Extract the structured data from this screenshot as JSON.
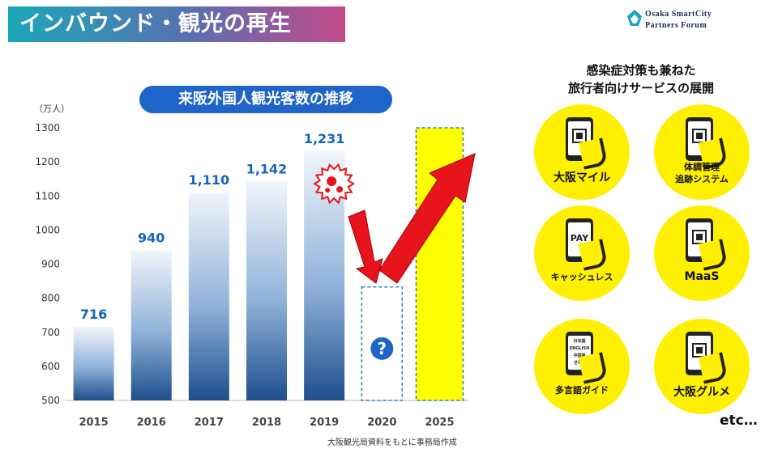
{
  "header": {
    "title": "インバウンド・観光の再生",
    "logo_line1": "Osaka SmartCity",
    "logo_line2": "Partners Forum"
  },
  "chart_data": {
    "type": "bar",
    "title": "来阪外国人観光客数の推移",
    "ylabel": "（万人）",
    "ylim": [
      500,
      1300
    ],
    "ytick_step": 100,
    "categories": [
      "2015",
      "2016",
      "2017",
      "2018",
      "2019",
      "2020",
      "2025"
    ],
    "values": [
      716,
      940,
      1110,
      1142,
      1231,
      null,
      null
    ],
    "labels": [
      "716",
      "940",
      "1,110",
      "1,142",
      "1,231",
      "",
      ""
    ],
    "placeholder_2020": {
      "value": 833,
      "symbol": "?"
    },
    "target_2025": {
      "value": 1300
    },
    "grid": false
  },
  "source": "大阪観光局資料をもとに事務局作成",
  "services": {
    "heading_line1": "感染症対策も兼ねた",
    "heading_line2": "旅行者向けサービスの展開",
    "items": [
      {
        "label": "大阪マイル",
        "icon": "qr-code-icon"
      },
      {
        "label": "体調管理\n追跡システム",
        "icon": "health-tracking-icon"
      },
      {
        "label": "キャッシュレス",
        "icon": "pay-icon",
        "glyph": "PAY"
      },
      {
        "label": "MaaS",
        "icon": "transport-icon"
      },
      {
        "label": "多言語ガイド",
        "icon": "multilingual-icon",
        "glyph": "日本語\nENGLISH\n中国語\n한국어"
      },
      {
        "label": "大阪グルメ",
        "icon": "gourmet-icon"
      }
    ],
    "etc": "etc…"
  },
  "colors": {
    "accent": "#1f64c8",
    "bar_top": "#f1f5fb",
    "bar_bottom": "#1d4f8c",
    "value_label": "#1565c0",
    "arrow": "#e8141b",
    "target": "#ffff00",
    "service_circle": "#ffef00"
  }
}
